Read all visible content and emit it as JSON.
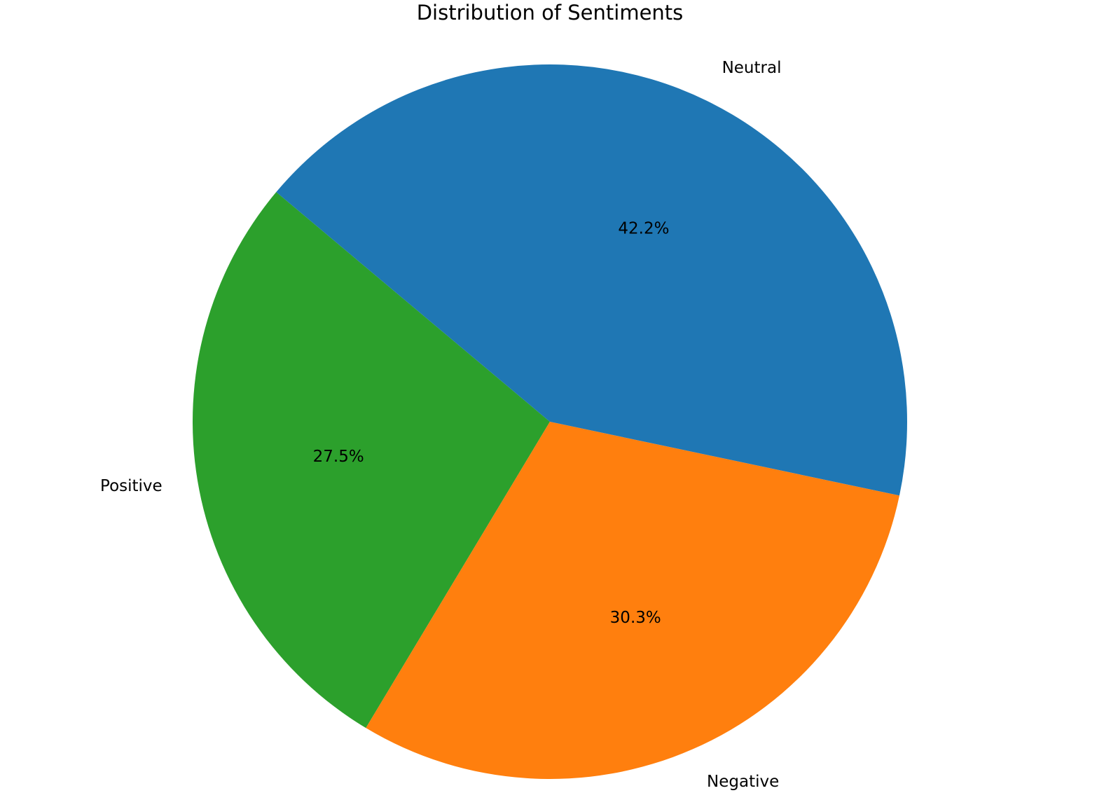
{
  "chart_data": {
    "type": "pie",
    "title": "Distribution of Sentiments",
    "categories": [
      "Positive",
      "Negative",
      "Neutral"
    ],
    "values": [
      27.5,
      30.3,
      42.2
    ],
    "percent_labels": [
      "27.5%",
      "30.3%",
      "42.2%"
    ],
    "colors": [
      "#2ca02c",
      "#ff7f0e",
      "#1f77b4"
    ],
    "start_angle": 140,
    "direction": "counterclockwise",
    "legend": "none"
  }
}
